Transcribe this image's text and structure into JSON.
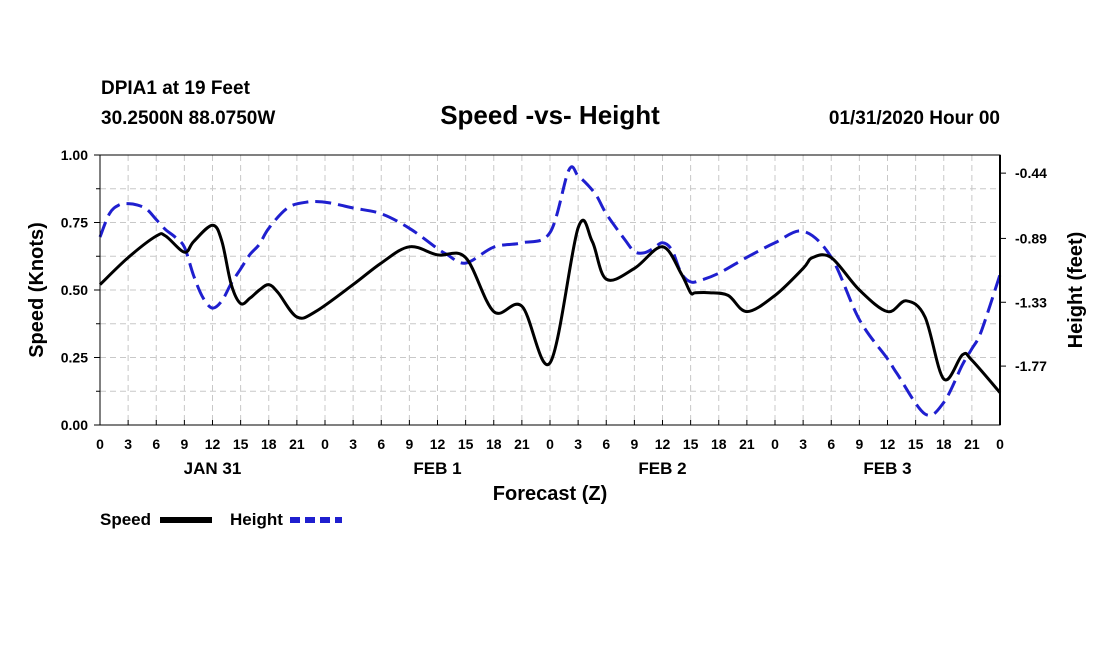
{
  "header": {
    "station": "DPIA1 at 19 Feet",
    "location": "30.2500N 88.0750W",
    "title": "Speed -vs- Height",
    "datetime": "01/31/2020 Hour 00"
  },
  "chart_data": {
    "type": "line",
    "title": "Speed -vs- Height",
    "xlabel": "Forecast (Z)",
    "ylabel": "Speed (Knots)",
    "y2label": "Height (feet)",
    "x_unit": "hours since 01/31/2020 00Z",
    "xlim": [
      0,
      96
    ],
    "ylim": [
      0,
      1.0
    ],
    "y2lim": [
      -2.176,
      -0.315
    ],
    "grid": true,
    "legend_position": "bottom-left",
    "x_ticks": [
      0,
      3,
      6,
      9,
      12,
      15,
      18,
      21,
      24,
      27,
      30,
      33,
      36,
      39,
      42,
      45,
      48,
      51,
      54,
      57,
      60,
      63,
      66,
      69,
      72,
      75,
      78,
      81,
      84,
      87,
      90,
      93,
      96
    ],
    "x_tick_labels": [
      "0",
      "3",
      "6",
      "9",
      "12",
      "15",
      "18",
      "21",
      "0",
      "3",
      "6",
      "9",
      "12",
      "15",
      "18",
      "21",
      "0",
      "3",
      "6",
      "9",
      "12",
      "15",
      "18",
      "21",
      "0",
      "3",
      "6",
      "9",
      "12",
      "15",
      "18",
      "21",
      "0"
    ],
    "day_labels": [
      {
        "label": "JAN 31",
        "x": 12
      },
      {
        "label": "FEB 1",
        "x": 36
      },
      {
        "label": "FEB 2",
        "x": 60
      },
      {
        "label": "FEB 3",
        "x": 84
      }
    ],
    "y_ticks": [
      0.0,
      0.25,
      0.5,
      0.75,
      1.0
    ],
    "y_tick_labels": [
      "0.00",
      "0.25",
      "0.50",
      "0.75",
      "1.00"
    ],
    "y2_ticks": [
      -0.44,
      -0.89,
      -1.33,
      -1.77
    ],
    "y2_tick_labels": [
      "-0.44",
      "-0.89",
      "-1.33",
      "-1.77"
    ],
    "series": [
      {
        "name": "Speed",
        "axis": "left",
        "color": "#000000",
        "dash": "solid",
        "x": [
          0,
          3,
          6,
          7,
          9,
          10,
          12,
          13,
          14,
          15,
          16,
          17,
          18,
          19,
          21,
          23,
          27,
          30,
          33,
          36,
          39,
          42,
          45,
          48,
          51,
          52.5,
          54,
          57,
          60,
          62,
          63,
          63.5,
          65,
          67,
          69,
          72,
          75,
          76,
          78,
          81,
          84,
          86,
          88,
          90,
          92,
          93,
          96
        ],
        "y": [
          0.52,
          0.62,
          0.7,
          0.7,
          0.64,
          0.68,
          0.74,
          0.68,
          0.52,
          0.45,
          0.47,
          0.5,
          0.52,
          0.49,
          0.4,
          0.42,
          0.52,
          0.6,
          0.66,
          0.63,
          0.62,
          0.42,
          0.44,
          0.23,
          0.73,
          0.68,
          0.54,
          0.58,
          0.66,
          0.56,
          0.49,
          0.49,
          0.49,
          0.48,
          0.42,
          0.48,
          0.58,
          0.62,
          0.62,
          0.5,
          0.42,
          0.46,
          0.4,
          0.17,
          0.26,
          0.24,
          0.12
        ]
      },
      {
        "name": "Height",
        "axis": "right",
        "color": "#1f1fcf",
        "dash": "dashed",
        "x": [
          0,
          1,
          2,
          3,
          4,
          5,
          6,
          7,
          8,
          9,
          10,
          11,
          12,
          13,
          14,
          15,
          16,
          17,
          18,
          20,
          22,
          24,
          27,
          30,
          33,
          36,
          37,
          39,
          42,
          45,
          48,
          50,
          51,
          52,
          53,
          54,
          56,
          57,
          58,
          59,
          60,
          61,
          62,
          63,
          64,
          66,
          69,
          72,
          75,
          78,
          81,
          84,
          85,
          88,
          90,
          92,
          93,
          94,
          96
        ],
        "y": [
          -0.88,
          -0.72,
          -0.66,
          -0.65,
          -0.66,
          -0.69,
          -0.76,
          -0.83,
          -0.88,
          -0.95,
          -1.15,
          -1.3,
          -1.37,
          -1.32,
          -1.2,
          -1.1,
          -1.0,
          -0.93,
          -0.82,
          -0.68,
          -0.64,
          -0.64,
          -0.68,
          -0.72,
          -0.82,
          -0.96,
          -1.0,
          -1.06,
          -0.95,
          -0.92,
          -0.85,
          -0.42,
          -0.46,
          -0.52,
          -0.6,
          -0.72,
          -0.9,
          -0.98,
          -0.99,
          -0.96,
          -0.92,
          -0.97,
          -1.13,
          -1.19,
          -1.18,
          -1.13,
          -1.02,
          -0.92,
          -0.84,
          -1.02,
          -1.45,
          -1.72,
          -1.82,
          -2.1,
          -2.02,
          -1.76,
          -1.65,
          -1.53,
          -1.14
        ]
      }
    ],
    "legend": [
      {
        "name": "Speed",
        "color": "#000000",
        "dash": "solid"
      },
      {
        "name": "Height",
        "color": "#1f1fcf",
        "dash": "dashed"
      }
    ]
  }
}
